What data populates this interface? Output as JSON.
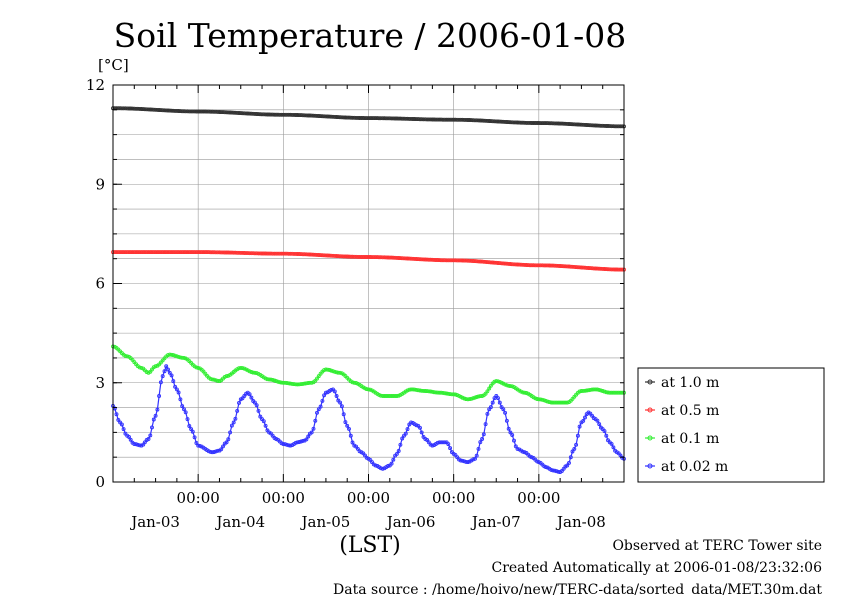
{
  "chart_data": {
    "type": "line",
    "title": "Soil Temperature / 2006-01-08",
    "ylabel": "[°C]",
    "xlabel": "(LST)",
    "ylim": [
      0,
      12
    ],
    "yticks": [
      0,
      3,
      6,
      9,
      12
    ],
    "xlim": [
      0,
      144
    ],
    "time_labels": [
      {
        "x": 24,
        "label": "00:00"
      },
      {
        "x": 48,
        "label": "00:00"
      },
      {
        "x": 72,
        "label": "00:00"
      },
      {
        "x": 96,
        "label": "00:00"
      },
      {
        "x": 120,
        "label": "00:00"
      }
    ],
    "date_labels": [
      {
        "x": 12,
        "label": "Jan-03"
      },
      {
        "x": 36,
        "label": "Jan-04"
      },
      {
        "x": 60,
        "label": "Jan-05"
      },
      {
        "x": 84,
        "label": "Jan-06"
      },
      {
        "x": 108,
        "label": "Jan-07"
      },
      {
        "x": 132,
        "label": "Jan-08"
      }
    ],
    "grid": true,
    "legend_position": "right",
    "series": [
      {
        "name": "at 1.0 m",
        "color": "#333333",
        "points": [
          [
            0,
            11.3
          ],
          [
            24,
            11.2
          ],
          [
            48,
            11.1
          ],
          [
            72,
            11.0
          ],
          [
            96,
            10.95
          ],
          [
            120,
            10.85
          ],
          [
            144,
            10.75
          ]
        ]
      },
      {
        "name": "at 0.5 m",
        "color": "#ff3333",
        "points": [
          [
            0,
            6.95
          ],
          [
            24,
            6.95
          ],
          [
            48,
            6.9
          ],
          [
            72,
            6.8
          ],
          [
            96,
            6.7
          ],
          [
            120,
            6.55
          ],
          [
            144,
            6.42
          ]
        ]
      },
      {
        "name": "at 0.1 m",
        "color": "#33ee33",
        "points": [
          [
            0,
            4.1
          ],
          [
            4,
            3.8
          ],
          [
            8,
            3.45
          ],
          [
            10,
            3.3
          ],
          [
            12,
            3.5
          ],
          [
            16,
            3.85
          ],
          [
            20,
            3.75
          ],
          [
            24,
            3.45
          ],
          [
            28,
            3.1
          ],
          [
            30,
            3.05
          ],
          [
            32,
            3.2
          ],
          [
            36,
            3.45
          ],
          [
            40,
            3.3
          ],
          [
            44,
            3.1
          ],
          [
            48,
            3.0
          ],
          [
            52,
            2.95
          ],
          [
            56,
            3.0
          ],
          [
            60,
            3.4
          ],
          [
            64,
            3.3
          ],
          [
            68,
            3.0
          ],
          [
            72,
            2.8
          ],
          [
            76,
            2.6
          ],
          [
            80,
            2.6
          ],
          [
            84,
            2.8
          ],
          [
            88,
            2.75
          ],
          [
            92,
            2.7
          ],
          [
            96,
            2.65
          ],
          [
            100,
            2.5
          ],
          [
            104,
            2.6
          ],
          [
            108,
            3.05
          ],
          [
            112,
            2.9
          ],
          [
            116,
            2.7
          ],
          [
            120,
            2.5
          ],
          [
            124,
            2.4
          ],
          [
            128,
            2.4
          ],
          [
            132,
            2.75
          ],
          [
            136,
            2.8
          ],
          [
            140,
            2.7
          ],
          [
            144,
            2.7
          ]
        ]
      },
      {
        "name": "at 0.02 m",
        "color": "#3333ff",
        "points": [
          [
            0,
            2.3
          ],
          [
            2,
            1.8
          ],
          [
            4,
            1.4
          ],
          [
            6,
            1.15
          ],
          [
            8,
            1.1
          ],
          [
            10,
            1.3
          ],
          [
            12,
            2.0
          ],
          [
            14,
            3.2
          ],
          [
            15,
            3.5
          ],
          [
            16,
            3.3
          ],
          [
            18,
            2.8
          ],
          [
            20,
            2.2
          ],
          [
            22,
            1.6
          ],
          [
            24,
            1.1
          ],
          [
            28,
            0.9
          ],
          [
            30,
            0.95
          ],
          [
            32,
            1.2
          ],
          [
            34,
            1.8
          ],
          [
            36,
            2.5
          ],
          [
            38,
            2.7
          ],
          [
            40,
            2.4
          ],
          [
            42,
            1.9
          ],
          [
            44,
            1.5
          ],
          [
            46,
            1.3
          ],
          [
            48,
            1.15
          ],
          [
            50,
            1.1
          ],
          [
            52,
            1.2
          ],
          [
            54,
            1.25
          ],
          [
            56,
            1.5
          ],
          [
            58,
            2.2
          ],
          [
            60,
            2.7
          ],
          [
            62,
            2.8
          ],
          [
            64,
            2.4
          ],
          [
            66,
            1.7
          ],
          [
            68,
            1.1
          ],
          [
            70,
            0.9
          ],
          [
            72,
            0.7
          ],
          [
            74,
            0.5
          ],
          [
            76,
            0.4
          ],
          [
            78,
            0.5
          ],
          [
            80,
            0.85
          ],
          [
            82,
            1.4
          ],
          [
            84,
            1.8
          ],
          [
            86,
            1.7
          ],
          [
            88,
            1.3
          ],
          [
            90,
            1.1
          ],
          [
            92,
            1.2
          ],
          [
            94,
            1.2
          ],
          [
            96,
            0.85
          ],
          [
            98,
            0.65
          ],
          [
            100,
            0.6
          ],
          [
            102,
            0.7
          ],
          [
            104,
            1.3
          ],
          [
            106,
            2.2
          ],
          [
            108,
            2.6
          ],
          [
            110,
            2.2
          ],
          [
            112,
            1.5
          ],
          [
            114,
            1.0
          ],
          [
            116,
            0.9
          ],
          [
            118,
            0.75
          ],
          [
            120,
            0.6
          ],
          [
            122,
            0.45
          ],
          [
            124,
            0.35
          ],
          [
            126,
            0.3
          ],
          [
            128,
            0.5
          ],
          [
            130,
            1.0
          ],
          [
            132,
            1.8
          ],
          [
            134,
            2.1
          ],
          [
            136,
            1.9
          ],
          [
            138,
            1.6
          ],
          [
            140,
            1.2
          ],
          [
            142,
            0.9
          ],
          [
            144,
            0.7
          ]
        ]
      }
    ]
  },
  "footer": {
    "observed": "Observed at TERC Tower site",
    "created": "Created Automatically at 2006-01-08/23:32:06",
    "source": "Data source : /home/hoivo/new/TERC-data/sorted_data/MET.30m.dat"
  }
}
